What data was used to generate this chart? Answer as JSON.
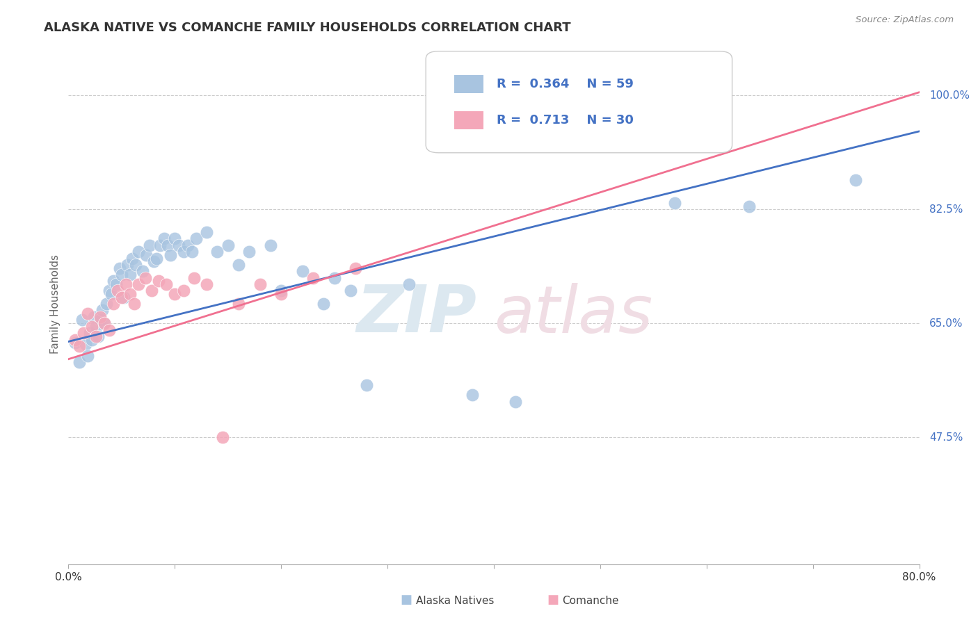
{
  "title": "ALASKA NATIVE VS COMANCHE FAMILY HOUSEHOLDS CORRELATION CHART",
  "source": "Source: ZipAtlas.com",
  "ylabel": "Family Households",
  "x_min": 0.0,
  "x_max": 0.8,
  "y_min": 0.28,
  "y_max": 1.08,
  "y_tick_positions": [
    0.475,
    0.65,
    0.825,
    1.0
  ],
  "y_tick_labels": [
    "47.5%",
    "65.0%",
    "82.5%",
    "100.0%"
  ],
  "alaska_R": 0.364,
  "alaska_N": 59,
  "comanche_R": 0.713,
  "comanche_N": 30,
  "alaska_color": "#a8c4e0",
  "comanche_color": "#f4a7b9",
  "alaska_line_color": "#4472c4",
  "comanche_line_color": "#f07090",
  "legend_label_alaska": "Alaska Natives",
  "legend_label_comanche": "Comanche",
  "alaska_line": [
    0.0,
    0.622,
    0.8,
    0.945
  ],
  "comanche_line": [
    0.0,
    0.595,
    0.8,
    1.005
  ],
  "alaska_x": [
    0.006,
    0.01,
    0.013,
    0.016,
    0.018,
    0.02,
    0.022,
    0.024,
    0.026,
    0.028,
    0.03,
    0.032,
    0.034,
    0.036,
    0.038,
    0.04,
    0.042,
    0.045,
    0.048,
    0.05,
    0.052,
    0.055,
    0.058,
    0.06,
    0.063,
    0.066,
    0.07,
    0.073,
    0.076,
    0.08,
    0.083,
    0.086,
    0.09,
    0.093,
    0.096,
    0.1,
    0.104,
    0.108,
    0.112,
    0.116,
    0.12,
    0.13,
    0.14,
    0.15,
    0.16,
    0.17,
    0.19,
    0.2,
    0.22,
    0.24,
    0.25,
    0.265,
    0.28,
    0.32,
    0.38,
    0.42,
    0.57,
    0.64,
    0.74
  ],
  "alaska_y": [
    0.62,
    0.59,
    0.655,
    0.618,
    0.6,
    0.635,
    0.625,
    0.66,
    0.645,
    0.63,
    0.655,
    0.67,
    0.65,
    0.68,
    0.7,
    0.695,
    0.715,
    0.71,
    0.735,
    0.725,
    0.69,
    0.74,
    0.725,
    0.75,
    0.74,
    0.76,
    0.73,
    0.755,
    0.77,
    0.745,
    0.75,
    0.77,
    0.78,
    0.77,
    0.755,
    0.78,
    0.77,
    0.76,
    0.77,
    0.76,
    0.78,
    0.79,
    0.76,
    0.77,
    0.74,
    0.76,
    0.77,
    0.7,
    0.73,
    0.68,
    0.72,
    0.7,
    0.555,
    0.71,
    0.54,
    0.53,
    0.835,
    0.83,
    0.87
  ],
  "comanche_x": [
    0.006,
    0.01,
    0.014,
    0.018,
    0.022,
    0.026,
    0.03,
    0.034,
    0.038,
    0.042,
    0.046,
    0.05,
    0.054,
    0.058,
    0.062,
    0.066,
    0.072,
    0.078,
    0.085,
    0.092,
    0.1,
    0.108,
    0.118,
    0.13,
    0.145,
    0.16,
    0.18,
    0.2,
    0.23,
    0.27
  ],
  "comanche_y": [
    0.625,
    0.615,
    0.635,
    0.665,
    0.645,
    0.63,
    0.66,
    0.65,
    0.64,
    0.68,
    0.7,
    0.69,
    0.71,
    0.695,
    0.68,
    0.71,
    0.72,
    0.7,
    0.715,
    0.71,
    0.695,
    0.7,
    0.72,
    0.71,
    0.475,
    0.68,
    0.71,
    0.695,
    0.72,
    0.735
  ]
}
